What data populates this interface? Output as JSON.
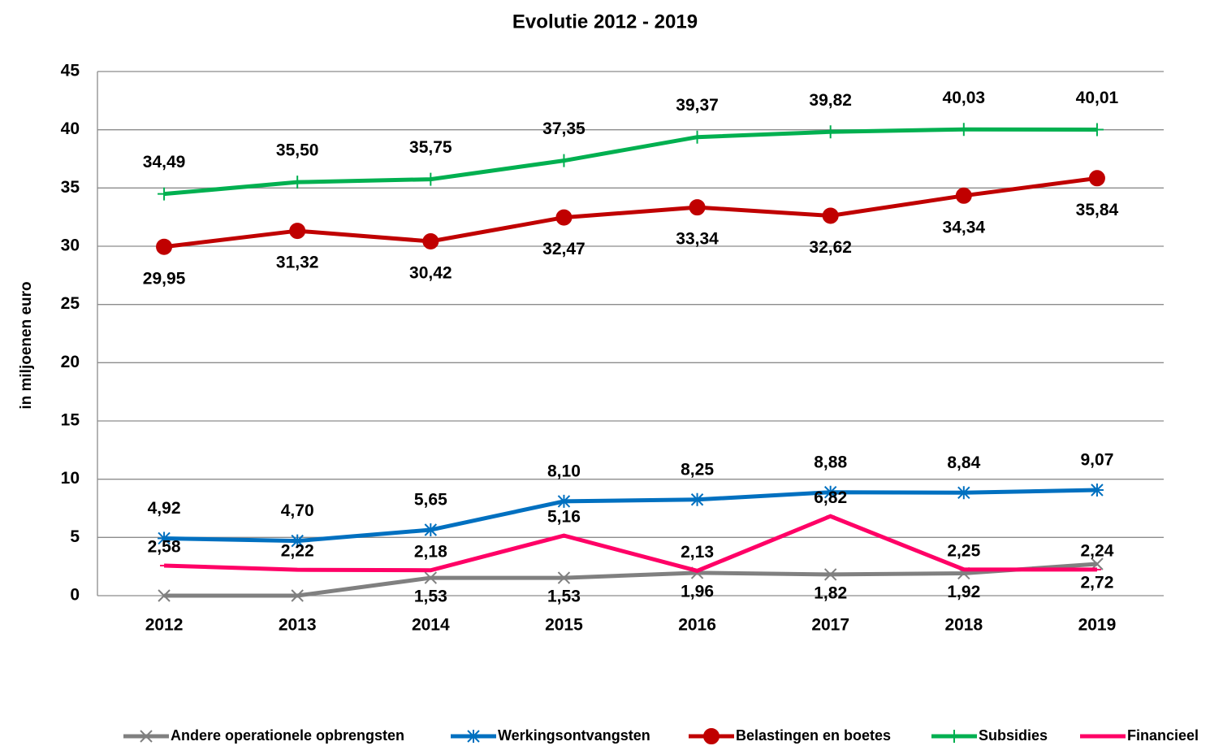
{
  "chart_data": {
    "type": "line",
    "title": "Evolutie 2012 - 2019",
    "y_label": "in miljoenen euro",
    "categories": [
      "2012",
      "2013",
      "2014",
      "2015",
      "2016",
      "2017",
      "2018",
      "2019"
    ],
    "ylim": [
      0,
      45
    ],
    "yticks": [
      0,
      5,
      10,
      15,
      20,
      25,
      30,
      35,
      40,
      45
    ],
    "grid": true,
    "legend": "bottom",
    "series": [
      {
        "name": "Andere operationele opbrengsten",
        "color": "#808080",
        "values": [
          0,
          0,
          1.53,
          1.53,
          1.96,
          1.82,
          1.92,
          2.72
        ],
        "value_labels": [
          null,
          null,
          "1,53",
          "1,53",
          "1,96",
          "1,82",
          "1,92",
          "2,72"
        ]
      },
      {
        "name": "Werkingsontvangsten",
        "color": "#0070c0",
        "values": [
          4.92,
          4.7,
          5.65,
          8.1,
          8.25,
          8.88,
          8.84,
          9.07
        ],
        "value_labels": [
          "4,92",
          "4,70",
          "5,65",
          "8,10",
          "8,25",
          "8,88",
          "8,84",
          "9,07"
        ]
      },
      {
        "name": "Belastingen en boetes",
        "color": "#c00000",
        "values": [
          29.95,
          31.32,
          30.42,
          32.47,
          33.34,
          32.62,
          34.34,
          35.84
        ],
        "value_labels": [
          "29,95",
          "31,32",
          "30,42",
          "32,47",
          "33,34",
          "32,62",
          "34,34",
          "35,84"
        ]
      },
      {
        "name": "Subsidies",
        "color": "#00b050",
        "values": [
          34.49,
          35.5,
          35.75,
          37.35,
          39.37,
          39.82,
          40.03,
          40.01
        ],
        "value_labels": [
          "34,49",
          "35,50",
          "35,75",
          "37,35",
          "39,37",
          "39,82",
          "40,03",
          "40,01"
        ]
      },
      {
        "name": "Financieel",
        "color": "#ff0066",
        "values": [
          2.58,
          2.22,
          2.18,
          5.16,
          2.13,
          6.82,
          2.25,
          2.24
        ],
        "value_labels": [
          "2,58",
          "2,22",
          "2,18",
          "5,16",
          "2,13",
          "6,82",
          "2,25",
          "2,24"
        ]
      }
    ]
  }
}
